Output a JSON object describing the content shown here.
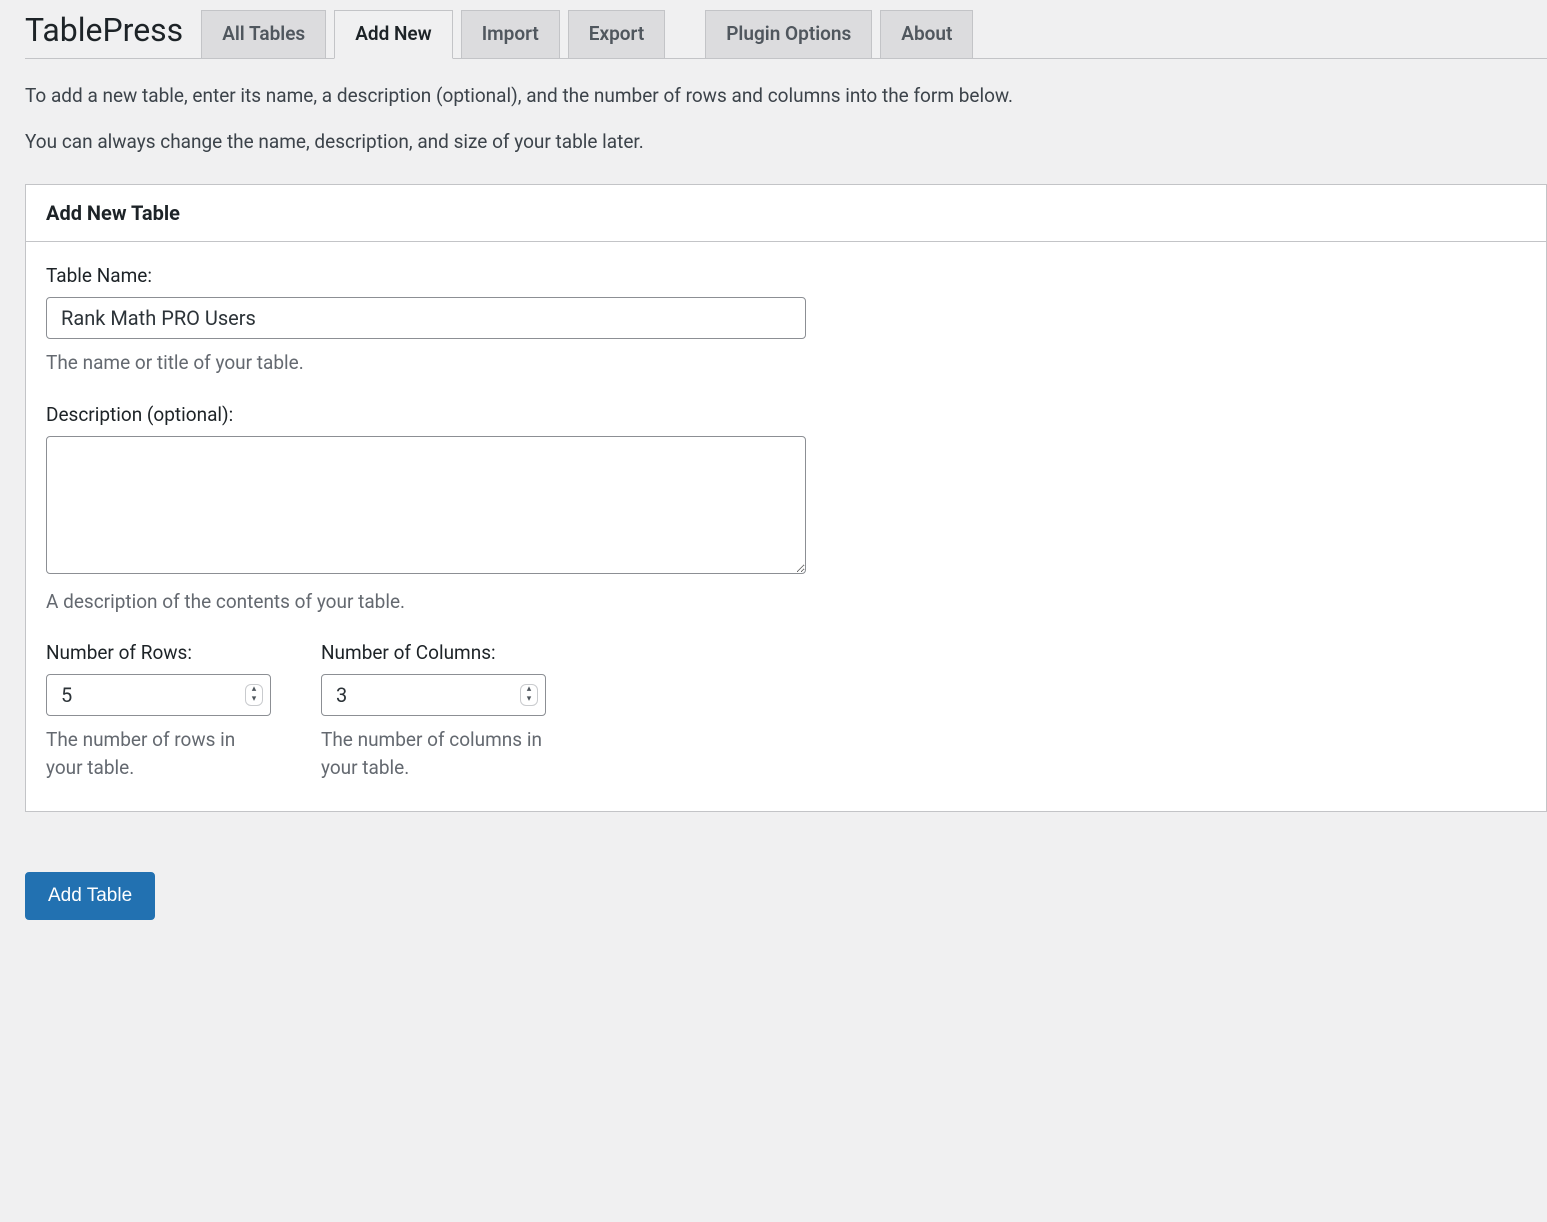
{
  "page": {
    "title": "TablePress",
    "tabs": [
      {
        "label": "All Tables",
        "active": false
      },
      {
        "label": "Add New",
        "active": true
      },
      {
        "label": "Import",
        "active": false
      },
      {
        "label": "Export",
        "active": false
      },
      {
        "label": "Plugin Options",
        "active": false
      },
      {
        "label": "About",
        "active": false
      }
    ],
    "intro_line1": "To add a new table, enter its name, a description (optional), and the number of rows and columns into the form below.",
    "intro_line2": "You can always change the name, description, and size of your table later."
  },
  "panel": {
    "heading": "Add New Table",
    "table_name": {
      "label": "Table Name:",
      "value": "Rank Math PRO Users",
      "help": "The name or title of your table."
    },
    "description": {
      "label": "Description (optional):",
      "value": "",
      "help": "A description of the contents of your table."
    },
    "rows": {
      "label": "Number of Rows:",
      "value": "5",
      "help": "The number of rows in your table."
    },
    "cols": {
      "label": "Number of Columns:",
      "value": "3",
      "help": "The number of columns in your table."
    }
  },
  "action": {
    "submit_label": "Add Table"
  },
  "colors": {
    "bg": "#f0f0f1",
    "panel_bg": "#ffffff",
    "border": "#c3c4c7",
    "text": "#1d2327",
    "muted": "#646970",
    "primary": "#2271b1",
    "tab_bg": "#dcdcde"
  }
}
